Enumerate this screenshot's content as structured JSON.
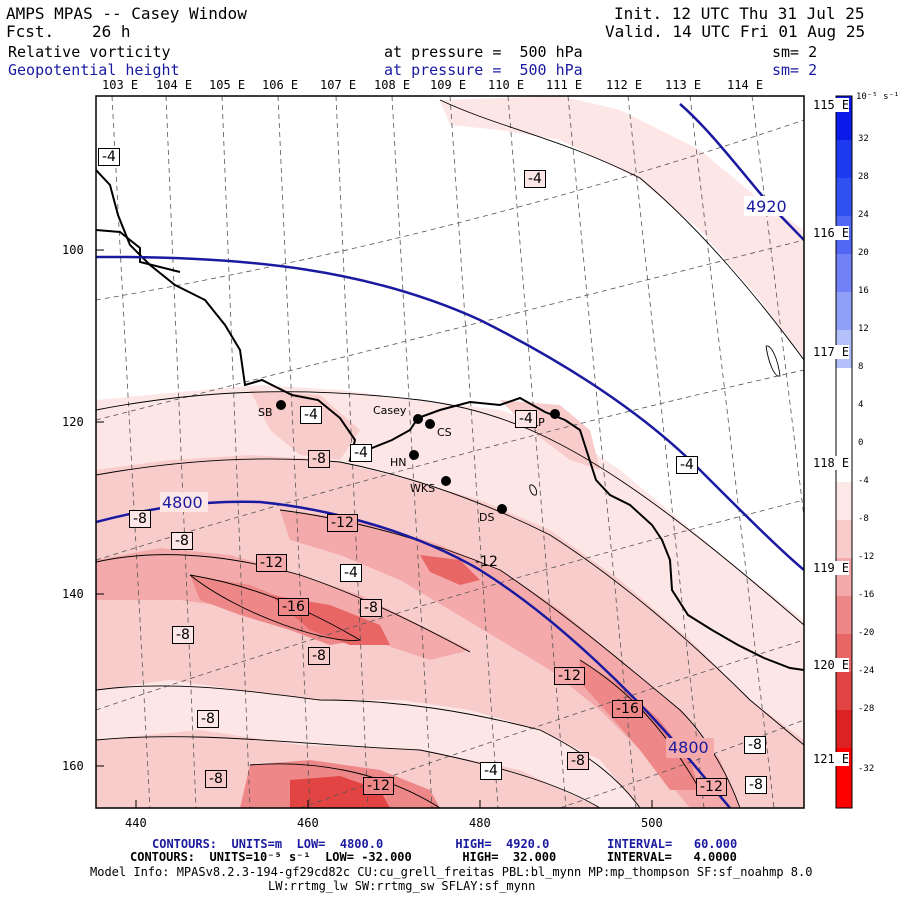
{
  "header": {
    "title": "AMPS MPAS -- Casey Window",
    "fcst_label": "Fcst.",
    "fcst_value": "26 h",
    "init": "Init. 12 UTC Thu 31 Jul 25",
    "valid": "Valid. 14 UTC Fri 01 Aug 25",
    "field1": {
      "name": "Relative vorticity",
      "pressure": "at pressure =  500 hPa",
      "sm": "sm= 2"
    },
    "field2": {
      "name": "Geopotential height",
      "pressure": "at pressure =  500 hPa",
      "sm": "sm= 2"
    }
  },
  "top_longitudes": [
    "103 E",
    "104 E",
    "105 E",
    "106 E",
    "107 E",
    "108 E",
    "109 E",
    "110 E",
    "111 E",
    "112 E",
    "113 E",
    "114 E"
  ],
  "right_longitudes": [
    "115 E",
    "116 E",
    "117 E",
    "118 E",
    "119 E",
    "120 E",
    "121 E"
  ],
  "y_ticks": [
    "100",
    "120",
    "140",
    "160"
  ],
  "x_ticks": [
    "440",
    "460",
    "480",
    "500"
  ],
  "colorbar": {
    "unit": "10⁻⁵ s⁻¹",
    "labels": [
      "32",
      "28",
      "24",
      "20",
      "16",
      "12",
      "8",
      "4",
      "0",
      "-4",
      "-8",
      "-12",
      "-16",
      "-20",
      "-24",
      "-28",
      "-32"
    ],
    "colors": [
      "#0a1ae8",
      "#1e3af0",
      "#3050f2",
      "#5068f4",
      "#7080f6",
      "#90a0f8",
      "#b4c0fa",
      "#ffffff",
      "#ffffff",
      "#fde8e8",
      "#f9cccc",
      "#f4aaaa",
      "#ee8888",
      "#e86666",
      "#e24444",
      "#dc2222",
      "#ff0000"
    ]
  },
  "stations": [
    {
      "name": "SB"
    },
    {
      "name": "Casey"
    },
    {
      "name": "CS"
    },
    {
      "name": "HN"
    },
    {
      "name": "WKS"
    },
    {
      "name": "DS"
    },
    {
      "name": "LP"
    }
  ],
  "height_labels": [
    "4920",
    "4800",
    "4800"
  ],
  "vort_labels": [
    "-4",
    "-4",
    "-4",
    "-4",
    "-4",
    "-4",
    "-4",
    "-4",
    "-8",
    "-8",
    "-8",
    "-8",
    "-8",
    "-8",
    "-8",
    "-8",
    "-8",
    "-8",
    "-8",
    "-12",
    "-12",
    "-12",
    "-12",
    "-12",
    "-12",
    "-16",
    "-16"
  ],
  "footer": {
    "line1": "CONTOURS:  UNITS=m  LOW=  4800.0          HIGH=  4920.0        INTERVAL=   60.000",
    "line2": "CONTOURS:  UNITS=10⁻⁵ s⁻¹  LOW= -32.000       HIGH=  32.000       INTERVAL=   4.0000",
    "line3": "Model Info: MPASv8.2.3-194-gf29cd82c CU:cu_grell_freitas PBL:bl_mynn MP:mp_thompson SF:sf_noahmp 8.0",
    "line4": "LW:rrtmg_lw SW:rrtmg_sw SFLAY:sf_mynn"
  }
}
